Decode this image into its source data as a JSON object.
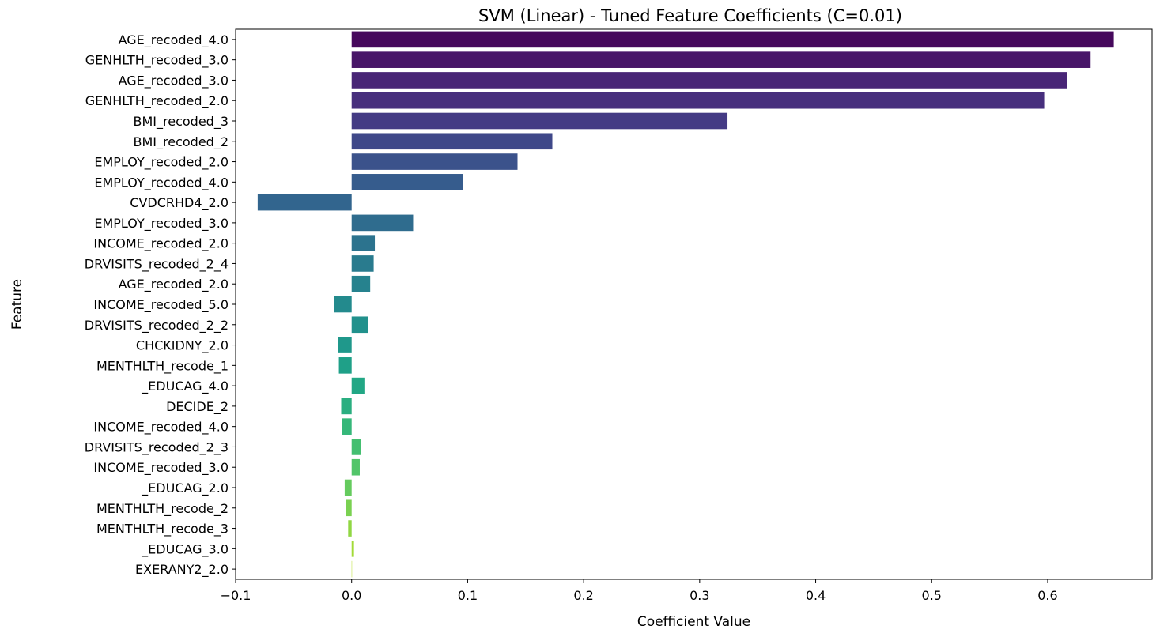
{
  "chart_data": {
    "type": "bar",
    "orientation": "horizontal",
    "title": "SVM (Linear) - Tuned Feature Coefficients (C=0.01)",
    "xlabel": "Coefficient Value",
    "ylabel": "Feature",
    "xlim": [
      -0.1,
      0.69
    ],
    "xticks": [
      -0.1,
      0.0,
      0.1,
      0.2,
      0.3,
      0.4,
      0.5,
      0.6
    ],
    "xtick_labels": [
      "−0.1",
      "0.0",
      "0.1",
      "0.2",
      "0.3",
      "0.4",
      "0.5",
      "0.6"
    ],
    "grid": false,
    "palette": "viridis",
    "categories": [
      "AGE_recoded_4.0",
      "GENHLTH_recoded_3.0",
      "AGE_recoded_3.0",
      "GENHLTH_recoded_2.0",
      "BMI_recoded_3",
      "BMI_recoded_2",
      "EMPLOY_recoded_2.0",
      "EMPLOY_recoded_4.0",
      "CVDCRHD4_2.0",
      "EMPLOY_recoded_3.0",
      "INCOME_recoded_2.0",
      "DRVISITS_recoded_2_4",
      "AGE_recoded_2.0",
      "INCOME_recoded_5.0",
      "DRVISITS_recoded_2_2",
      "CHCKIDNY_2.0",
      "MENTHLTH_recode_1",
      "_EDUCAG_4.0",
      "DECIDE_2",
      "INCOME_recoded_4.0",
      "DRVISITS_recoded_2_3",
      "INCOME_recoded_3.0",
      "_EDUCAG_2.0",
      "MENTHLTH_recode_2",
      "MENTHLTH_recode_3",
      "_EDUCAG_3.0",
      "EXERANY2_2.0"
    ],
    "values": [
      0.657,
      0.637,
      0.617,
      0.597,
      0.324,
      0.173,
      0.143,
      0.096,
      -0.081,
      0.053,
      0.02,
      0.019,
      0.016,
      -0.015,
      0.014,
      -0.012,
      -0.011,
      0.011,
      -0.009,
      -0.008,
      0.008,
      0.007,
      -0.006,
      -0.005,
      -0.003,
      0.002,
      0.0
    ],
    "colors": [
      "#46085c",
      "#481668",
      "#482576",
      "#472f7d",
      "#443b84",
      "#3f4889",
      "#3b528b",
      "#365c8d",
      "#32658e",
      "#2f6c8e",
      "#2c738e",
      "#297b8e",
      "#26828e",
      "#238a8d",
      "#21918c",
      "#1f988b",
      "#1fa088",
      "#22a785",
      "#2aae80",
      "#35b779",
      "#44bf70",
      "#52c569",
      "#65cb5e",
      "#7ad151",
      "#90d743",
      "#a2da37",
      "#b8de29"
    ]
  }
}
